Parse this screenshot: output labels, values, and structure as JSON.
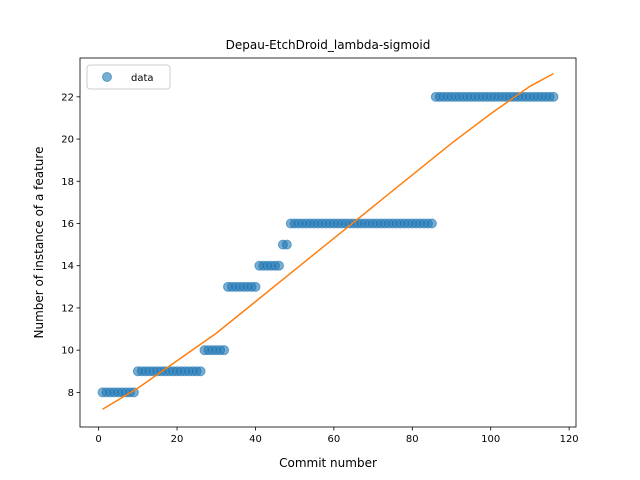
{
  "chart_data": {
    "type": "scatter",
    "title": "Depau-EtchDroid_lambda-sigmoid",
    "xlabel": "Commit number",
    "ylabel": "Number of instance of a feature",
    "xlim": [
      -4.75,
      121.75
    ],
    "ylim": [
      6.36,
      23.84
    ],
    "x_ticks": [
      0,
      20,
      40,
      60,
      80,
      100,
      120
    ],
    "y_ticks": [
      8,
      10,
      12,
      14,
      16,
      18,
      20,
      22
    ],
    "legend": {
      "position": "upper-left",
      "entries": [
        "data"
      ]
    },
    "grid": false,
    "series": [
      {
        "name": "data",
        "kind": "scatter",
        "color": "#1f77b4",
        "points": [
          [
            1,
            8
          ],
          [
            2,
            8
          ],
          [
            3,
            8
          ],
          [
            4,
            8
          ],
          [
            5,
            8
          ],
          [
            6,
            8
          ],
          [
            7,
            8
          ],
          [
            8,
            8
          ],
          [
            9,
            8
          ],
          [
            10,
            9
          ],
          [
            11,
            9
          ],
          [
            12,
            9
          ],
          [
            13,
            9
          ],
          [
            14,
            9
          ],
          [
            15,
            9
          ],
          [
            16,
            9
          ],
          [
            17,
            9
          ],
          [
            18,
            9
          ],
          [
            19,
            9
          ],
          [
            20,
            9
          ],
          [
            21,
            9
          ],
          [
            22,
            9
          ],
          [
            23,
            9
          ],
          [
            24,
            9
          ],
          [
            25,
            9
          ],
          [
            26,
            9
          ],
          [
            27,
            10
          ],
          [
            28,
            10
          ],
          [
            29,
            10
          ],
          [
            30,
            10
          ],
          [
            31,
            10
          ],
          [
            32,
            10
          ],
          [
            33,
            13
          ],
          [
            34,
            13
          ],
          [
            35,
            13
          ],
          [
            36,
            13
          ],
          [
            37,
            13
          ],
          [
            38,
            13
          ],
          [
            39,
            13
          ],
          [
            40,
            13
          ],
          [
            41,
            14
          ],
          [
            42,
            14
          ],
          [
            43,
            14
          ],
          [
            44,
            14
          ],
          [
            45,
            14
          ],
          [
            46,
            14
          ],
          [
            47,
            15
          ],
          [
            48,
            15
          ],
          [
            49,
            16
          ],
          [
            50,
            16
          ],
          [
            51,
            16
          ],
          [
            52,
            16
          ],
          [
            53,
            16
          ],
          [
            54,
            16
          ],
          [
            55,
            16
          ],
          [
            56,
            16
          ],
          [
            57,
            16
          ],
          [
            58,
            16
          ],
          [
            59,
            16
          ],
          [
            60,
            16
          ],
          [
            61,
            16
          ],
          [
            62,
            16
          ],
          [
            63,
            16
          ],
          [
            64,
            16
          ],
          [
            65,
            16
          ],
          [
            66,
            16
          ],
          [
            67,
            16
          ],
          [
            68,
            16
          ],
          [
            69,
            16
          ],
          [
            70,
            16
          ],
          [
            71,
            16
          ],
          [
            72,
            16
          ],
          [
            73,
            16
          ],
          [
            74,
            16
          ],
          [
            75,
            16
          ],
          [
            76,
            16
          ],
          [
            77,
            16
          ],
          [
            78,
            16
          ],
          [
            79,
            16
          ],
          [
            80,
            16
          ],
          [
            81,
            16
          ],
          [
            82,
            16
          ],
          [
            83,
            16
          ],
          [
            84,
            16
          ],
          [
            85,
            16
          ],
          [
            86,
            22
          ],
          [
            87,
            22
          ],
          [
            88,
            22
          ],
          [
            89,
            22
          ],
          [
            90,
            22
          ],
          [
            91,
            22
          ],
          [
            92,
            22
          ],
          [
            93,
            22
          ],
          [
            94,
            22
          ],
          [
            95,
            22
          ],
          [
            96,
            22
          ],
          [
            97,
            22
          ],
          [
            98,
            22
          ],
          [
            99,
            22
          ],
          [
            100,
            22
          ],
          [
            101,
            22
          ],
          [
            102,
            22
          ],
          [
            103,
            22
          ],
          [
            104,
            22
          ],
          [
            105,
            22
          ],
          [
            106,
            22
          ],
          [
            107,
            22
          ],
          [
            108,
            22
          ],
          [
            109,
            22
          ],
          [
            110,
            22
          ],
          [
            111,
            22
          ],
          [
            112,
            22
          ],
          [
            113,
            22
          ],
          [
            114,
            22
          ],
          [
            115,
            22
          ],
          [
            116,
            22
          ]
        ]
      },
      {
        "name": "",
        "kind": "line",
        "color": "#ff7f0e",
        "points": [
          [
            1,
            7.2
          ],
          [
            10,
            8.2
          ],
          [
            20,
            9.5
          ],
          [
            30,
            10.8
          ],
          [
            40,
            12.3
          ],
          [
            50,
            13.8
          ],
          [
            60,
            15.3
          ],
          [
            70,
            16.8
          ],
          [
            80,
            18.3
          ],
          [
            90,
            19.8
          ],
          [
            100,
            21.2
          ],
          [
            110,
            22.5
          ],
          [
            116,
            23.1
          ]
        ]
      }
    ]
  }
}
